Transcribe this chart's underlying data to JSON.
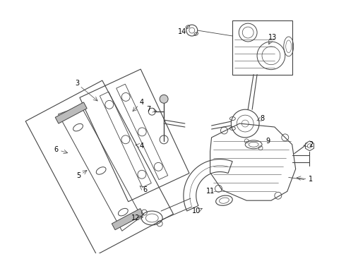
{
  "background_color": "#ffffff",
  "line_color": "#444444",
  "figsize": [
    4.9,
    3.6
  ],
  "dpi": 100,
  "label_data": [
    [
      "1",
      442,
      255,
      418,
      252
    ],
    [
      "2",
      442,
      205,
      428,
      207
    ],
    [
      "3",
      108,
      118,
      140,
      145
    ],
    [
      "4",
      200,
      145,
      185,
      160
    ],
    [
      "4",
      200,
      207,
      188,
      205
    ],
    [
      "5",
      110,
      250,
      125,
      240
    ],
    [
      "6",
      78,
      212,
      98,
      218
    ],
    [
      "6",
      205,
      270,
      195,
      262
    ],
    [
      "7",
      210,
      155,
      225,
      158
    ],
    [
      "8",
      372,
      168,
      362,
      172
    ],
    [
      "9",
      380,
      200,
      378,
      200
    ],
    [
      "10",
      278,
      300,
      290,
      295
    ],
    [
      "11",
      298,
      272,
      303,
      272
    ],
    [
      "12",
      192,
      310,
      206,
      308
    ],
    [
      "13",
      387,
      52,
      380,
      65
    ],
    [
      "14",
      258,
      44,
      264,
      44
    ]
  ]
}
